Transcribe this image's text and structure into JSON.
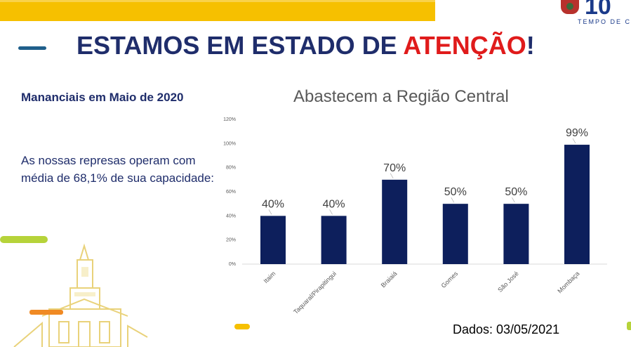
{
  "headline": {
    "prefix": "ESTAMOS EM ESTADO DE ",
    "highlight": "ATENÇÃO",
    "suffix": "!"
  },
  "logo": {
    "tagline": "TEMPO DE CR",
    "text": "10"
  },
  "sidebar": {
    "title": "Mananciais em Maio de 2020",
    "body": " As nossas represas operam com média de 68,1% de sua capacidade:"
  },
  "footer": "Dados: 03/05/2021",
  "colors": {
    "bar": "#0d1f5c",
    "headline": "#1f2d6b",
    "accent_red": "#e01b1b",
    "banner": "#f6c000"
  },
  "chart_data": {
    "type": "bar",
    "title": "Abastecem a Região Central",
    "categories": [
      "Itaim",
      "Taquaral/Pirapitingui",
      "Braiaiá",
      "Gomes",
      "São José",
      "Mombaça"
    ],
    "values": [
      40,
      40,
      70,
      50,
      50,
      99
    ],
    "data_labels": [
      "40%",
      "40%",
      "70%",
      "50%",
      "50%",
      "99%"
    ],
    "ylim": [
      0,
      120
    ],
    "yticks": [
      "0%",
      "20%",
      "40%",
      "60%",
      "80%",
      "100%",
      "120%"
    ],
    "grid": false,
    "legend": "none"
  }
}
